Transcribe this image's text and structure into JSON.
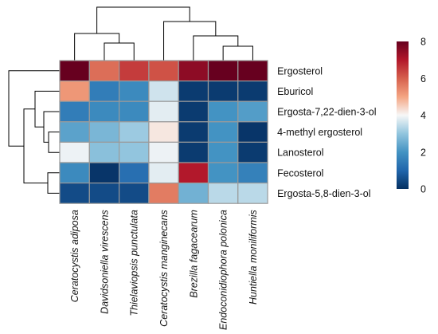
{
  "chart_data": {
    "type": "heatmap",
    "title": "",
    "rows": [
      "Ergosterol",
      "Eburicol",
      "Ergosta-7,22-dien-3-ol",
      "4-methyl ergosterol",
      "Lanosterol",
      "Fecosterol",
      "Ergosta-5,8-dien-3-ol"
    ],
    "columns": [
      "Ceratocystis adiposa",
      "Davidsoniella virescens",
      "Thielaviopsis punctulata",
      "Ceratocystis manginecans",
      "Brezilla fagacearum",
      "Endoconidiophora polonica",
      "Huntiella moniliformis"
    ],
    "values": [
      [
        8.0,
        5.8,
        6.5,
        6.2,
        7.5,
        8.0,
        8.0
      ],
      [
        5.2,
        1.5,
        1.8,
        3.6,
        0.2,
        0.2,
        0.2
      ],
      [
        1.5,
        1.8,
        1.8,
        3.8,
        0.2,
        2.0,
        2.2
      ],
      [
        2.3,
        2.7,
        3.1,
        4.2,
        0.2,
        2.0,
        0.1
      ],
      [
        3.9,
        2.9,
        3.0,
        3.9,
        0.2,
        2.0,
        0.2
      ],
      [
        1.8,
        0.1,
        1.2,
        3.8,
        7.0,
        2.0,
        1.6
      ],
      [
        0.5,
        0.5,
        0.5,
        5.6,
        2.6,
        3.4,
        3.4
      ]
    ],
    "colorbar": {
      "min": 0,
      "max": 8,
      "ticks": [
        "0",
        "2",
        "4",
        "6",
        "8"
      ]
    },
    "colors": {
      "low": "#053061",
      "mid": "#f7f7f7",
      "high": "#67001f",
      "grid": "#9a9a9a"
    },
    "row_dendrogram": true,
    "column_dendrogram": true
  }
}
